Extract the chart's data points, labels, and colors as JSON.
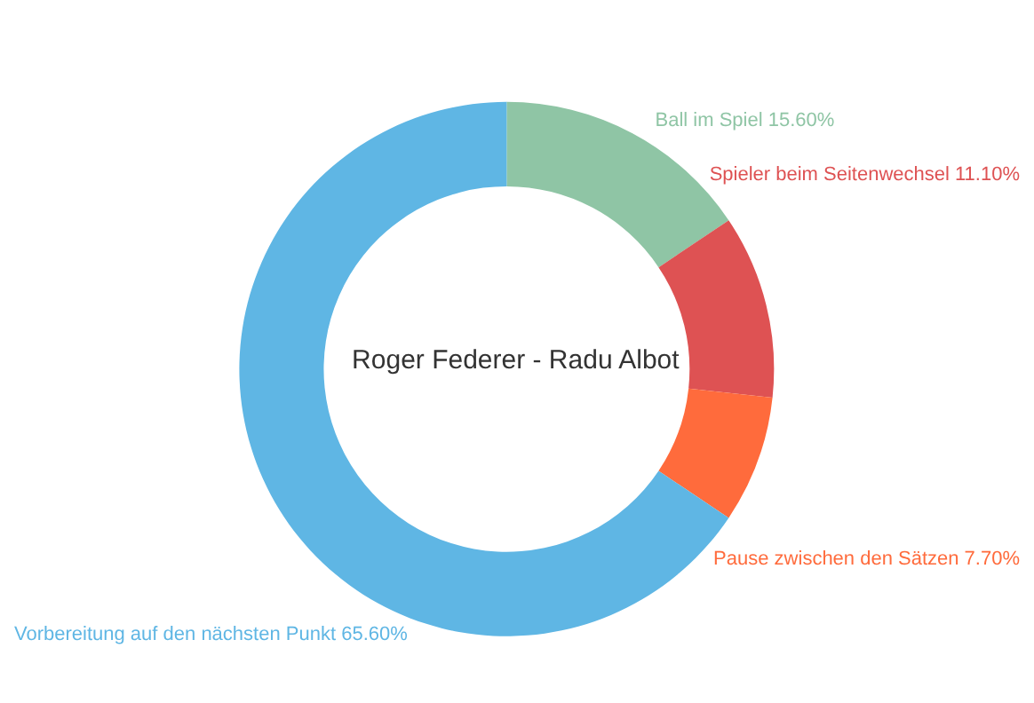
{
  "chart_data": {
    "type": "donut",
    "title": "Roger Federer - Radu Albot",
    "categories": [
      "Ball im Spiel",
      "Spieler beim Seitenwechsel",
      "Pause zwischen den Sätzen",
      "Vorbereitung auf den nächsten Punkt"
    ],
    "values": [
      15.6,
      11.1,
      7.7,
      65.6
    ],
    "value_labels": [
      "15.60%",
      "11.10%",
      "7.70%",
      "65.60%"
    ],
    "colors": [
      "#8fc5a5",
      "#de5253",
      "#ff6b3c",
      "#5fb6e4"
    ],
    "legend": false
  }
}
